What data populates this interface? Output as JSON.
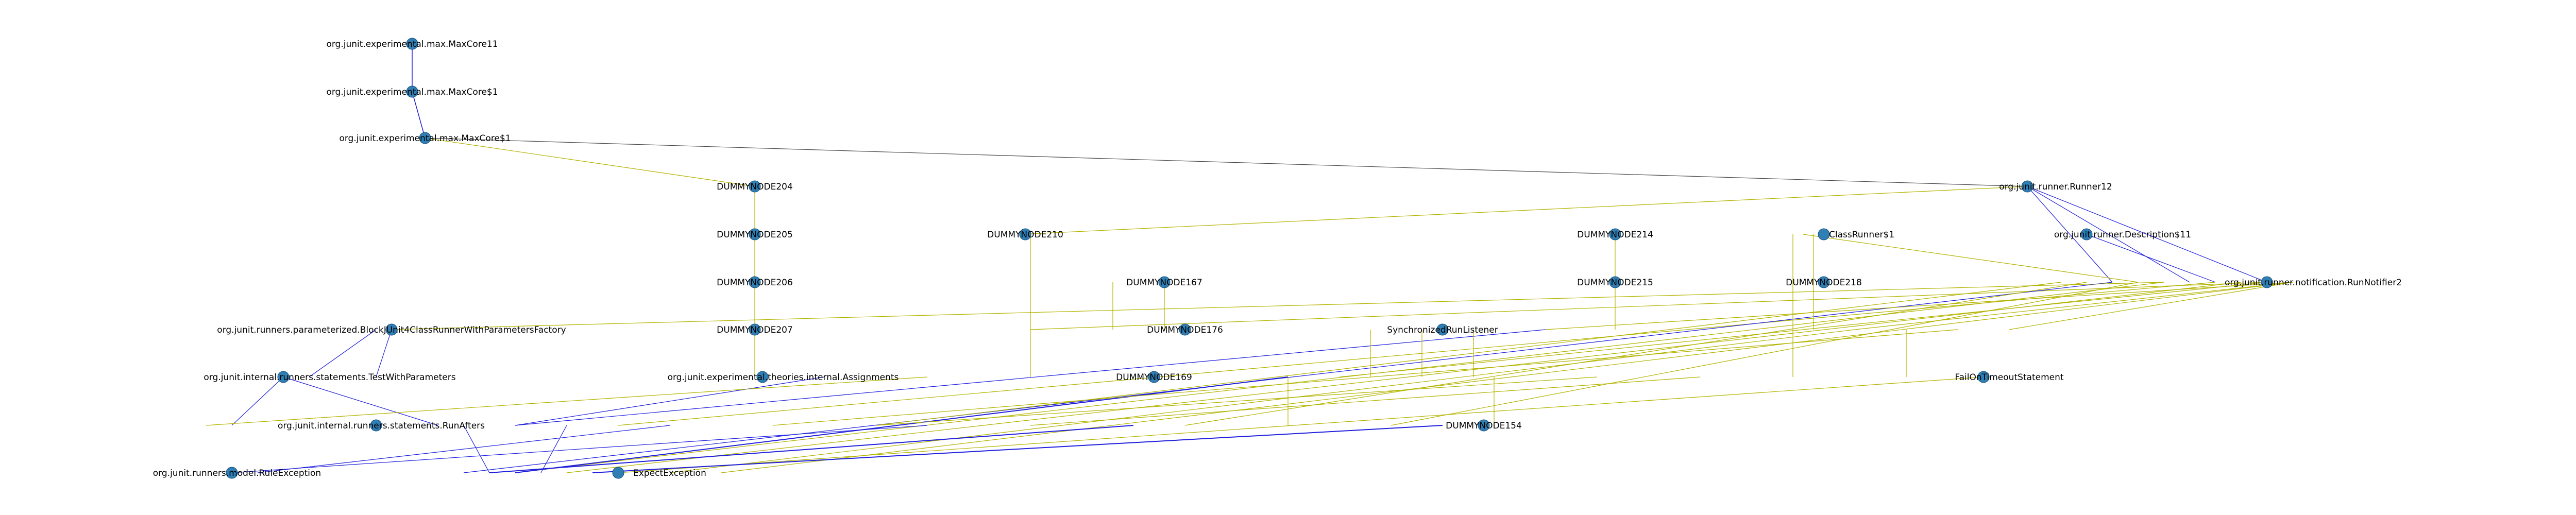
{
  "colors": {
    "node": "#2f7fb5",
    "edge_olive": "#b3b300",
    "edge_blue": "#1f1fdd",
    "edge_dark": "#4b4b4b",
    "background": "#ffffff"
  },
  "graph": {
    "nodes": [
      {
        "id": "n_maxcore11",
        "label": "org.junit.experimental.max.MaxCore11"
      },
      {
        "id": "n_maxcore1",
        "label": "org.junit.experimental.max.MaxCore$1"
      },
      {
        "id": "n_maxcore_filters1",
        "label": "org.junit.experimental.max.MaxCore$1"
      },
      {
        "id": "n_d204",
        "label": "DUMMYNODE204"
      },
      {
        "id": "n_d205",
        "label": "DUMMYNODE205"
      },
      {
        "id": "n_d206",
        "label": "DUMMYNODE206"
      },
      {
        "id": "n_d207",
        "label": "DUMMYNODE207"
      },
      {
        "id": "n_d210",
        "label": "DUMMYNODE210"
      },
      {
        "id": "n_d167",
        "label": "DUMMYNODE167"
      },
      {
        "id": "n_d214",
        "label": "DUMMYNODE214"
      },
      {
        "id": "n_d215",
        "label": "DUMMYNODE215"
      },
      {
        "id": "n_classrunner1",
        "label": "ClassRunner$1"
      },
      {
        "id": "n_d218",
        "label": "DUMMYNODE218"
      },
      {
        "id": "n_d176",
        "label": "DUMMYNODE176"
      },
      {
        "id": "n_d169",
        "label": "DUMMYNODE169"
      },
      {
        "id": "n_d154",
        "label": "DUMMYNODE154"
      },
      {
        "id": "n_stmt_factory",
        "label": "org.junit.runners.parameterized.BlockJUnit4ClassRunnerWithParametersFactory"
      },
      {
        "id": "n_test_with_params",
        "label": "org.junit.internal.runners.statements.TestWithParameters"
      },
      {
        "id": "n_assignments",
        "label": "org.junit.experimental.theories.internal.Assignments"
      },
      {
        "id": "n_sync_listener",
        "label": "SynchronizedRunListener"
      },
      {
        "id": "n_expect_exception",
        "label": "ExpectException"
      },
      {
        "id": "n_fail_on_timeout",
        "label": "FailOnTimeoutStatement"
      },
      {
        "id": "n_runner12",
        "label": "org.junit.runner.Runner12"
      },
      {
        "id": "n_runner11",
        "label": "org.junit.runner.Description$11"
      },
      {
        "id": "n_notifier2",
        "label": "org.junit.runner.notification.RunNotifier2"
      },
      {
        "id": "n_runafter",
        "label": "org.junit.internal.runners.statements.RunAfters"
      },
      {
        "id": "n_ruleexception",
        "label": "org.junit.runners.model.RuleException"
      }
    ]
  }
}
